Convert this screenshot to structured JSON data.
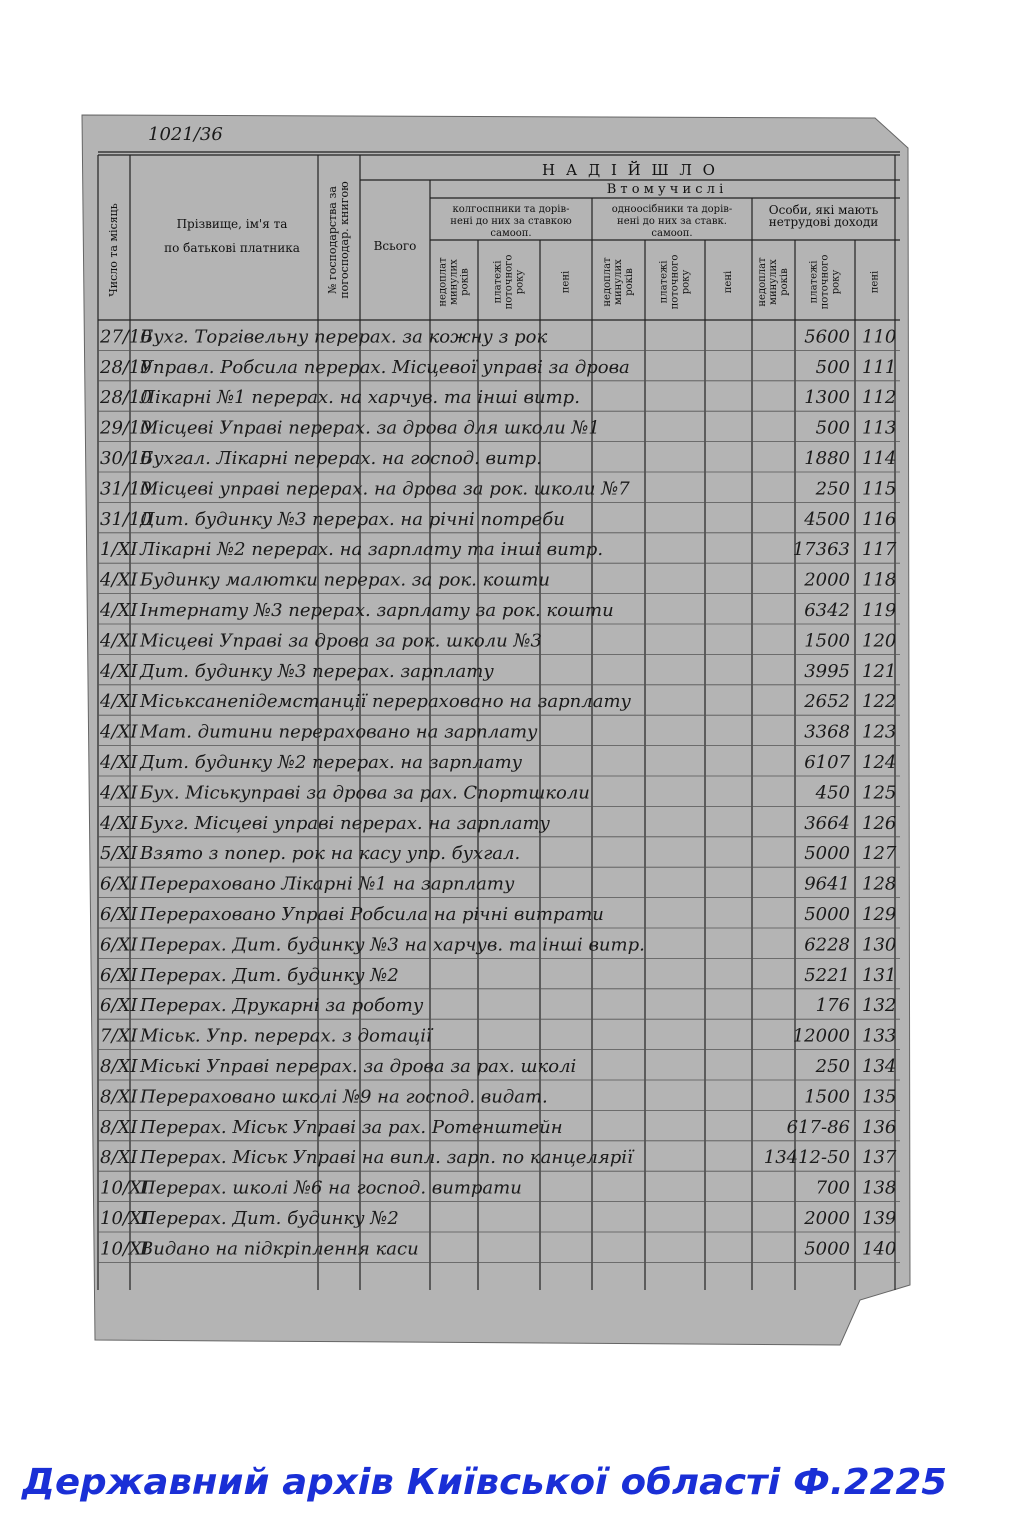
{
  "document": {
    "annotation": "1021/36",
    "header": {
      "date_label": [
        "Число та місяць"
      ],
      "name_label": [
        "Прізвище, ім'я та",
        "по батькові платника"
      ],
      "household_label": [
        "№ господарства за",
        "погосподар. книгою"
      ],
      "total_label": "Всього",
      "received": "Н А Д І Й Ш Л О",
      "including": "В  т о м у   ч и с л і",
      "groups": [
        {
          "title": [
            "колгоспники та дорів-",
            "нені до них за ставкою",
            "самооп."
          ],
          "subs": [
            [
              "недоплат",
              "минулих",
              "років"
            ],
            [
              "платежі",
              "поточного",
              "року"
            ],
            [
              "пені"
            ]
          ]
        },
        {
          "title": [
            "одноосібники та дорів-",
            "нені до них за ставк.",
            "самооп."
          ],
          "subs": [
            [
              "недоплат",
              "минулих",
              "років"
            ],
            [
              "платежі",
              "поточного",
              "року"
            ],
            [
              "пені"
            ]
          ]
        },
        {
          "title": [
            "Особи, які мають",
            "нетрудові доходи"
          ],
          "subs": [
            [
              "недоплат",
              "минулих",
              "років"
            ],
            [
              "платежі",
              "поточного",
              "року"
            ],
            [
              "пені"
            ]
          ]
        }
      ]
    },
    "rows": [
      [
        "27/10",
        "Бухг. Торгівельну перерах. за кожну з рок",
        "5600",
        "110"
      ],
      [
        "28/10",
        "Управл. Робсила перерах. Місцевої управі за дрова",
        "500",
        "111"
      ],
      [
        "28/10",
        "Лікарні №1 перерах. на харчув. та інші витр.",
        "1300",
        "112"
      ],
      [
        "29/10",
        "Місцеві Управі перерах. за дрова для школи №1",
        "500",
        "113"
      ],
      [
        "30/10",
        "Бухгал. Лікарні перерах. на господ. витр.",
        "1880",
        "114"
      ],
      [
        "31/10",
        "Місцеві управі перерах. на дрова за рок. школи №7",
        "250",
        "115"
      ],
      [
        "31/10",
        "Дит. будинку №3 перерах. на річні потреби",
        "4500",
        "116"
      ],
      [
        "1/XI",
        "Лікарні №2 перерах. на зарплату та інші витр.",
        "17363",
        "117"
      ],
      [
        "4/XI",
        "Будинку малютки перерах. за рок. кошти",
        "2000",
        "118"
      ],
      [
        "4/XI",
        "Інтернату №3 перерах. зарплату за рок. кошти",
        "6342",
        "119"
      ],
      [
        "4/XI",
        "Місцеві Управі за дрова за рок. школи №3",
        "1500",
        "120"
      ],
      [
        "4/XI",
        "Дит. будинку №3 перерах. зарплату",
        "3995",
        "121"
      ],
      [
        "4/XI",
        "Міськсанепідемстанції перераховано на зарплату",
        "2652",
        "122"
      ],
      [
        "4/XI",
        "Мат. дитини перераховано на зарплату",
        "3368",
        "123"
      ],
      [
        "4/XI",
        "Дит. будинку №2 перерах. на зарплату",
        "6107",
        "124"
      ],
      [
        "4/XI",
        "Бух. Міськуправі за дрова за рах. Спортшколи",
        "450",
        "125"
      ],
      [
        "4/XI",
        "Бухг. Місцеві управі перерах. на зарплату",
        "3664",
        "126"
      ],
      [
        "5/XI",
        "Взято з попер. рок на касу упр. бухгал.",
        "5000",
        "127"
      ],
      [
        "6/XI",
        "Перераховано Лікарні №1 на зарплату",
        "9641",
        "128"
      ],
      [
        "6/XI",
        "Перераховано Управі Робсила на річні витрати",
        "5000",
        "129"
      ],
      [
        "6/XI",
        "Перерах. Дит. будинку №3 на харчув. та інші витр.",
        "6228",
        "130"
      ],
      [
        "6/XI",
        "Перерах. Дит. будинку №2",
        "5221",
        "131"
      ],
      [
        "6/XI",
        "Перерах. Друкарні за роботу",
        "176",
        "132"
      ],
      [
        "7/XI",
        "Міськ. Упр. перерах. з дотації",
        "12000",
        "133"
      ],
      [
        "8/XI",
        "Міські Управі перерах. за дрова за рах. школі",
        "250",
        "134"
      ],
      [
        "8/XI",
        "Перераховано школі №9 на господ. видат.",
        "1500",
        "135"
      ],
      [
        "8/XI",
        "Перерах. Міськ Управі за рах. Ротенштейн",
        "617-86",
        "136"
      ],
      [
        "8/XI",
        "Перерах. Міськ Управі на випл. зарп. по канцелярії",
        "13412-50",
        "137"
      ],
      [
        "10/XI",
        "Перерах. школі №6 на господ. витрати",
        "700",
        "138"
      ],
      [
        "10/XI",
        "Перерах. Дит. будинку №2",
        "2000",
        "139"
      ],
      [
        "10/XI",
        "Видано на підкріплення каси",
        "5000",
        "140"
      ]
    ],
    "footer": "Державний архів Київської області Ф.2225"
  }
}
